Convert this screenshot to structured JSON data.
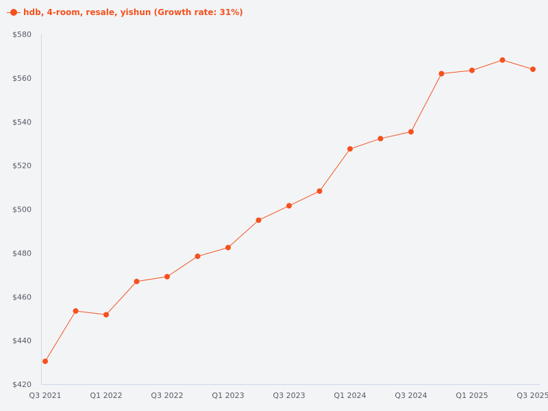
{
  "chart_data": {
    "type": "line",
    "title": "",
    "xlabel": "",
    "ylabel": "",
    "x": [
      "Q3 2021",
      "Q4 2021",
      "Q1 2022",
      "Q2 2022",
      "Q3 2022",
      "Q4 2022",
      "Q1 2023",
      "Q2 2023",
      "Q3 2023",
      "Q4 2023",
      "Q1 2024",
      "Q2 2024",
      "Q3 2024",
      "Q4 2024",
      "Q1 2025",
      "Q2 2025",
      "Q3 2025"
    ],
    "x_tick_labels": [
      "Q3 2021",
      "Q1 2022",
      "Q3 2022",
      "Q1 2023",
      "Q3 2023",
      "Q1 2024",
      "Q3 2024",
      "Q1 2025",
      "Q3 2025"
    ],
    "ylim": [
      420,
      580
    ],
    "y_ticks": [
      420,
      440,
      460,
      480,
      500,
      520,
      540,
      560,
      580
    ],
    "y_tick_prefix": "$",
    "grid": false,
    "legend_position": "top-left",
    "series": [
      {
        "name": "hdb, 4-room, resale, yishun (Growth rate: 31%)",
        "color": "#f4511e",
        "values": [
          430.5,
          453.5,
          451.8,
          467.0,
          469.2,
          478.5,
          482.5,
          495.0,
          501.6,
          508.3,
          527.6,
          532.3,
          535.4,
          562.0,
          563.5,
          568.2,
          564.0
        ]
      }
    ]
  },
  "legend": {
    "label": "hdb, 4-room, resale, yishun (Growth rate: 31%)",
    "color": "#f4511e"
  },
  "colors": {
    "background": "#f3f4f6",
    "axis": "#ccd6eb",
    "tick_text": "#555a63"
  }
}
